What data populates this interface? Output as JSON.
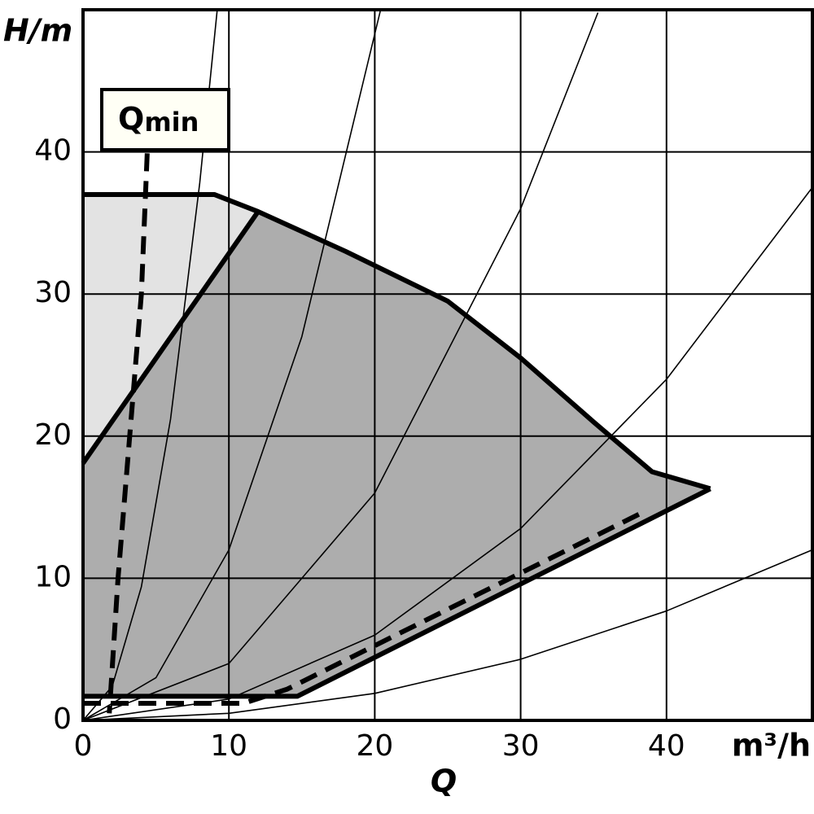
{
  "chart_data": {
    "type": "line",
    "title": "Qmin",
    "annotation": {
      "text": "Q",
      "sub": "min"
    },
    "x_label": "Q",
    "x_unit": "m³/h",
    "y_label": "H/m",
    "xlim": [
      0,
      50
    ],
    "ylim": [
      0,
      50
    ],
    "xticks": [
      0,
      10,
      20,
      30,
      40
    ],
    "yticks": [
      0,
      10,
      20,
      30,
      40
    ],
    "grid": true,
    "areas": [
      {
        "x": [
          0,
          9,
          12,
          0
        ],
        "values": [
          37,
          37,
          35.8,
          18.1
        ],
        "color": "#e3e3e3"
      },
      {
        "x": [
          0,
          12,
          18,
          25,
          30,
          35,
          39,
          43,
          14.7,
          0
        ],
        "values": [
          18.1,
          35.8,
          33,
          29.5,
          25.5,
          21,
          17.5,
          16.3,
          1.7,
          1.7
        ],
        "color": "#adadad"
      }
    ],
    "series": [
      {
        "x": [
          0,
          2,
          4,
          6,
          8,
          9.2
        ],
        "values": [
          0,
          2.4,
          9.4,
          21.2,
          37.8,
          50
        ],
        "color": "#000000",
        "style": "thin"
      },
      {
        "x": [
          0,
          5,
          10,
          15,
          20.4
        ],
        "values": [
          0,
          3,
          12,
          27,
          50
        ],
        "color": "#000000",
        "style": "thin"
      },
      {
        "x": [
          0,
          10,
          20,
          30,
          35.3
        ],
        "values": [
          0,
          4,
          16,
          36,
          49.8
        ],
        "color": "#000000",
        "style": "thin"
      },
      {
        "x": [
          0,
          10,
          20,
          30,
          40,
          50
        ],
        "values": [
          0,
          1.5,
          6,
          13.5,
          24,
          37.5
        ],
        "color": "#000000",
        "style": "thin"
      },
      {
        "x": [
          0,
          10,
          20,
          30,
          40,
          50
        ],
        "values": [
          0,
          0.5,
          1.9,
          4.3,
          7.7,
          12
        ],
        "color": "#000000",
        "style": "thin"
      },
      {
        "x": [
          0,
          9,
          12,
          18,
          25,
          30,
          35,
          39,
          43
        ],
        "values": [
          37,
          37,
          35.8,
          33,
          29.5,
          25.5,
          21,
          17.5,
          16.3
        ],
        "color": "#000000",
        "style": "thick"
      },
      {
        "x": [
          0,
          12
        ],
        "values": [
          18.1,
          35.8
        ],
        "color": "#000000",
        "style": "thick"
      },
      {
        "x": [
          0,
          14.7,
          43
        ],
        "values": [
          1.7,
          1.7,
          16.3
        ],
        "color": "#000000",
        "style": "thick"
      },
      {
        "x": [
          0,
          11,
          14,
          38.3
        ],
        "values": [
          1.2,
          1.2,
          2.2,
          14.6
        ],
        "color": "#000000",
        "style": "dashed"
      },
      {
        "x": [
          4.4,
          4,
          3.2,
          2.4,
          1.8
        ],
        "values": [
          39.9,
          30,
          20,
          10,
          0.5
        ],
        "color": "#000000",
        "style": "dashed"
      }
    ]
  }
}
